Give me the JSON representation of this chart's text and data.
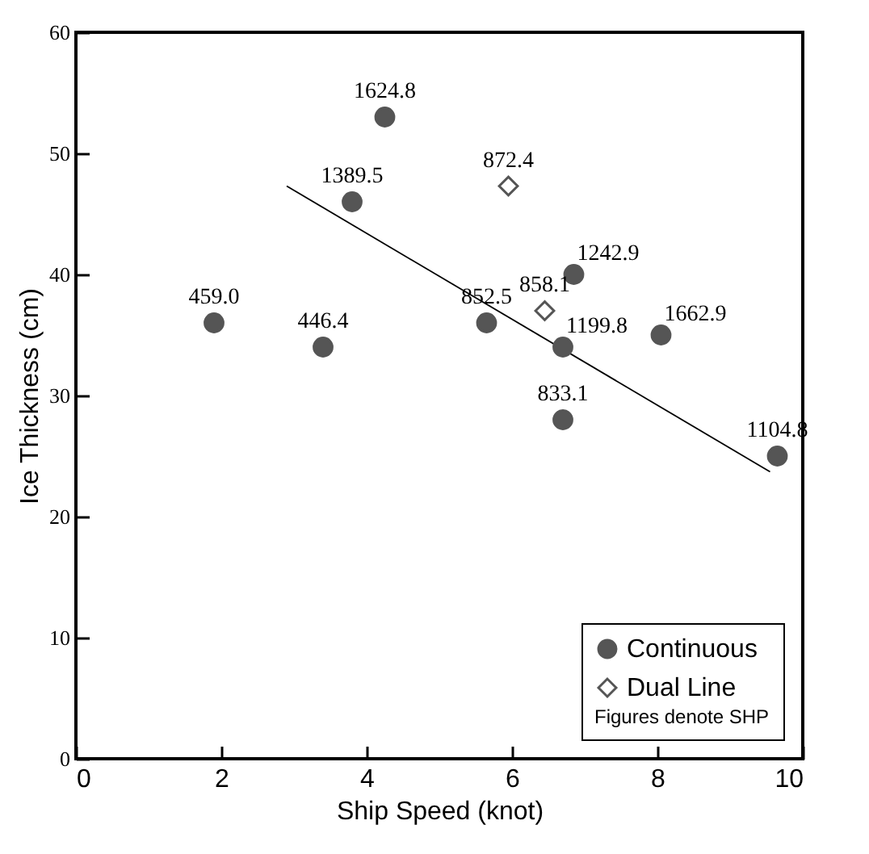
{
  "chart_data": {
    "type": "scatter",
    "xlabel": "Ship Speed (knot)",
    "ylabel": "Ice Thickness (cm)",
    "xlim": [
      0,
      10
    ],
    "xticks": [
      0,
      2,
      4,
      6,
      8,
      10
    ],
    "ylim": [
      0,
      60
    ],
    "yticks": [
      0,
      10,
      20,
      30,
      40,
      50,
      60
    ],
    "grid": false,
    "legend": "bottom right",
    "annotations": [
      "Figures denote SHP",
      {
        "text": "459.0",
        "x": 1.9,
        "y": 36
      },
      {
        "text": "446.4",
        "x": 3.4,
        "y": 34
      },
      {
        "text": "1389.5",
        "x": 3.8,
        "y": 46
      },
      {
        "text": "1624.8",
        "x": 4.25,
        "y": 53
      },
      {
        "text": "852.5",
        "x": 5.65,
        "y": 36
      },
      {
        "text": "1199.8",
        "x": 6.7,
        "y": 34
      },
      {
        "text": "833.1",
        "x": 6.7,
        "y": 28
      },
      {
        "text": "1242.9",
        "x": 6.85,
        "y": 40
      },
      {
        "text": "1662.9",
        "x": 8.05,
        "y": 35
      },
      {
        "text": "1104.8",
        "x": 9.65,
        "y": 25
      },
      {
        "text": "872.4",
        "x": 5.95,
        "y": 47.3
      },
      {
        "text": "858.1",
        "x": 6.45,
        "y": 37
      }
    ],
    "series": [
      {
        "name": "Continuous",
        "color": "#555555",
        "marker": "circle",
        "x": [
          1.9,
          3.4,
          3.8,
          4.25,
          5.65,
          6.7,
          6.7,
          6.85,
          8.05,
          9.65
        ],
        "values": [
          36,
          34,
          46,
          53,
          36,
          34,
          28,
          40,
          35,
          25
        ]
      },
      {
        "name": "Dual Line",
        "color": "#555555",
        "marker": "diamond",
        "x": [
          5.95,
          6.45
        ],
        "values": [
          47.3,
          37
        ]
      },
      {
        "type": "line",
        "color": "#000000",
        "x": [
          2.9,
          9.55
        ],
        "values": [
          47.3,
          23.7
        ]
      }
    ]
  }
}
